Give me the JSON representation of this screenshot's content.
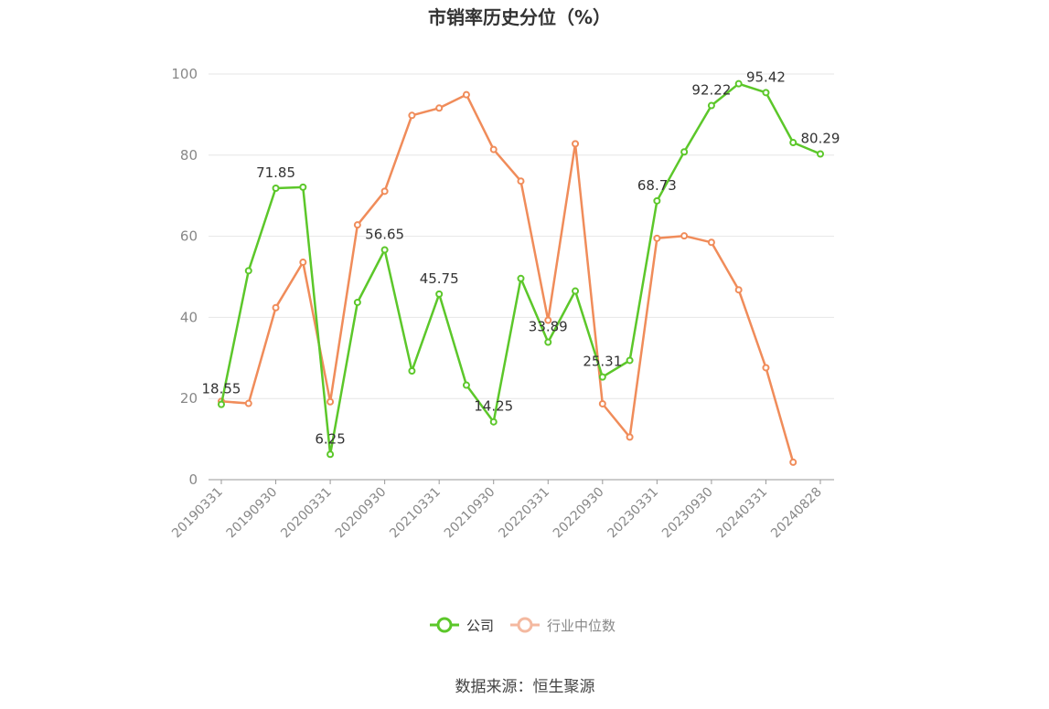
{
  "chart_data": {
    "type": "line",
    "title": "市销率历史分位（%）",
    "source": "数据来源：恒生聚源",
    "ylim": [
      0,
      100
    ],
    "y_ticks": [
      0,
      20,
      40,
      60,
      80,
      100
    ],
    "x_tick_labels": [
      "20190331",
      "20190930",
      "20200331",
      "20200930",
      "20210331",
      "20210930",
      "20220331",
      "20220930",
      "20230331",
      "20230930",
      "20240331",
      "20240828"
    ],
    "x": [
      "20190331",
      "20190630",
      "20190930",
      "20191231",
      "20200331",
      "20200630",
      "20200930",
      "20201231",
      "20210331",
      "20210630",
      "20210930",
      "20211231",
      "20220331",
      "20220630",
      "20220930",
      "20221231",
      "20230331",
      "20230630",
      "20230930",
      "20231231",
      "20240331",
      "20240630",
      "20240828"
    ],
    "series": [
      {
        "name": "公司",
        "color": "#5cc72a",
        "values": [
          18.55,
          51.5,
          71.85,
          72.1,
          6.25,
          43.7,
          56.65,
          26.8,
          45.75,
          23.3,
          14.25,
          49.6,
          33.89,
          46.5,
          25.31,
          29.4,
          68.73,
          80.8,
          92.22,
          97.6,
          95.42,
          83.1,
          80.29
        ],
        "labeled_points": [
          {
            "index": 0,
            "text": "18.55"
          },
          {
            "index": 2,
            "text": "71.85"
          },
          {
            "index": 4,
            "text": "6.25"
          },
          {
            "index": 6,
            "text": "56.65"
          },
          {
            "index": 8,
            "text": "45.75"
          },
          {
            "index": 10,
            "text": "14.25"
          },
          {
            "index": 12,
            "text": "33.89"
          },
          {
            "index": 14,
            "text": "25.31"
          },
          {
            "index": 16,
            "text": "68.73"
          },
          {
            "index": 18,
            "text": "92.22"
          },
          {
            "index": 20,
            "text": "95.42"
          },
          {
            "index": 22,
            "text": "80.29"
          }
        ]
      },
      {
        "name": "行业中位数",
        "color": "#f08c5a",
        "values": [
          19.3,
          18.8,
          42.4,
          53.6,
          19.2,
          62.8,
          71.1,
          89.8,
          91.6,
          94.9,
          81.4,
          73.6,
          39.3,
          82.8,
          18.7,
          10.5,
          59.5,
          60.1,
          58.5,
          46.8,
          27.6,
          4.3,
          null
        ]
      }
    ]
  },
  "legend": {
    "items": [
      {
        "label": "公司",
        "color": "#5cc72a"
      },
      {
        "label": "行业中位数",
        "color": "#f4b9a0"
      }
    ]
  }
}
